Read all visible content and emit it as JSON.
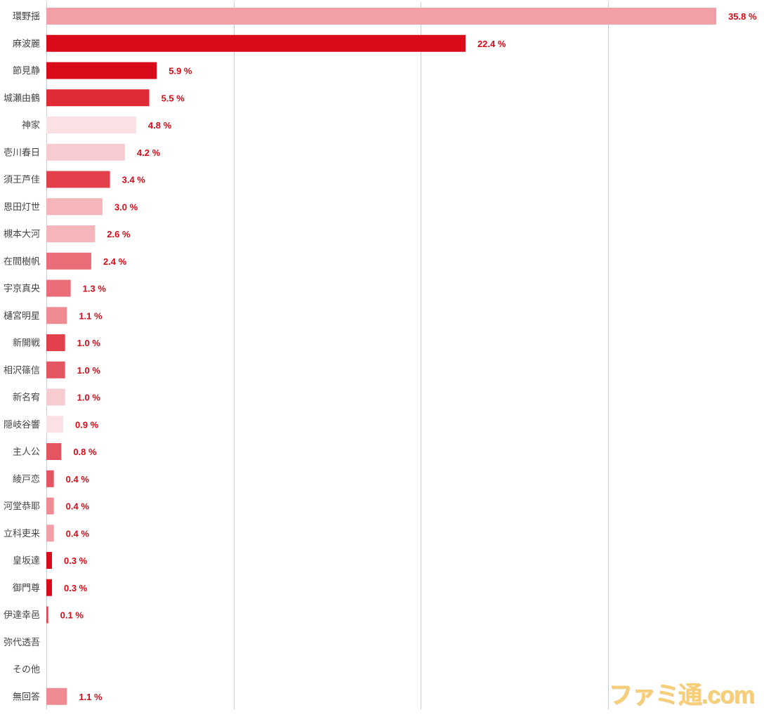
{
  "chart_data": {
    "type": "bar",
    "orientation": "horizontal",
    "title": "",
    "xlabel": "",
    "ylabel": "",
    "xlim": [
      0,
      40
    ],
    "grid": true,
    "value_suffix": " %",
    "categories": [
      "環野揺",
      "麻波麗",
      "節見静",
      "城瀬由鶴",
      "神家",
      "壱川春日",
      "須王芦佳",
      "恩田灯世",
      "槻本大河",
      "在間樹帆",
      "宇京真央",
      "樋宮明星",
      "新開戦",
      "相沢篠信",
      "新名宥",
      "隠岐谷響",
      "主人公",
      "綾戸恋",
      "河堂恭耶",
      "立科吏来",
      "皇坂達",
      "御門尊",
      "伊達幸邑",
      "弥代透吾",
      "その他",
      "無回答"
    ],
    "values": [
      35.8,
      22.4,
      5.9,
      5.5,
      4.8,
      4.2,
      3.4,
      3.0,
      2.6,
      2.4,
      1.3,
      1.1,
      1.0,
      1.0,
      1.0,
      0.9,
      0.8,
      0.4,
      0.4,
      0.4,
      0.3,
      0.3,
      0.1,
      null,
      null,
      1.1
    ],
    "value_labels": [
      "35.8 %",
      "22.4 %",
      "5.9 %",
      "5.5 %",
      "4.8 %",
      "4.2 %",
      "3.4 %",
      "3.0 %",
      "2.6 %",
      "2.4 %",
      "1.3 %",
      "1.1 %",
      "1.0 %",
      "1.0 %",
      "1.0 %",
      "0.9 %",
      "0.8 %",
      "0.4 %",
      "0.4 %",
      "0.4 %",
      "0.3 %",
      "0.3 %",
      "0.1 %",
      "",
      "",
      "1.1 %"
    ],
    "colors": [
      "#f0a0a6",
      "#da0a1a",
      "#da0a1a",
      "#e02b37",
      "#fbe1e3",
      "#f7ccd1",
      "#e2404b",
      "#f4b6bb",
      "#f4b6bb",
      "#e96c77",
      "#e96c77",
      "#ee8b93",
      "#e2404b",
      "#e55561",
      "#f7ccd1",
      "#fbe1e3",
      "#e55561",
      "#e55561",
      "#ee8b93",
      "#f0a0a6",
      "#da0a1a",
      "#da0a1a",
      "#e2404b",
      "#ffffff",
      "#ffffff",
      "#ee8b93"
    ],
    "value_label_color": "#d50a17",
    "grid_color": "#c9cfd6"
  },
  "watermark": "ファミ通.com"
}
